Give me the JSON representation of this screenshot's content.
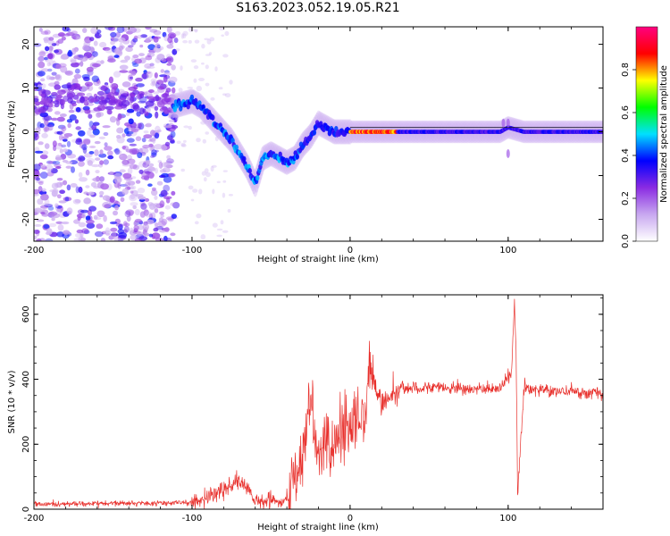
{
  "chart_data": [
    {
      "type": "heatmap",
      "title": "S163.2023.052.19.05.R21",
      "xlabel": "Height of straight line (km)",
      "ylabel": "Frequency (Hz)",
      "xlim": [
        -200,
        160
      ],
      "ylim": [
        -25,
        24
      ],
      "xticks": [
        -200,
        -100,
        0,
        100
      ],
      "yticks": [
        -20,
        -10,
        0,
        10,
        20
      ],
      "grid": false,
      "colorbar": {
        "label": "Normalized spectral amplitude",
        "range": [
          0,
          1
        ],
        "ticks": [
          0.0,
          0.2,
          0.4,
          0.6,
          0.8
        ],
        "colormap": [
          "#ffffff",
          "#c8a8f0",
          "#8a2be2",
          "#0000ff",
          "#00e0ff",
          "#00ff00",
          "#ffff00",
          "#ff0000",
          "#ff0080"
        ]
      },
      "ridge": {
        "x": [
          -110,
          -100,
          -95,
          -90,
          -85,
          -80,
          -75,
          -70,
          -65,
          -60,
          -55,
          -50,
          -45,
          -40,
          -35,
          -30,
          -25,
          -20,
          -15,
          -10,
          -5,
          0,
          10,
          20,
          40,
          60,
          80,
          95,
          100,
          110,
          130,
          160
        ],
        "y": [
          6,
          7,
          6,
          4,
          2,
          0,
          -2,
          -5,
          -8,
          -12,
          -6,
          -5,
          -6,
          -7,
          -6,
          -3,
          -1,
          2,
          1,
          0,
          0,
          0,
          0,
          0,
          0,
          0,
          0,
          0,
          1,
          0,
          0,
          0
        ]
      }
    },
    {
      "type": "line",
      "xlabel": "Height of straight line (km)",
      "ylabel": "SNR (10 * v/v)",
      "xlim": [
        -200,
        160
      ],
      "ylim": [
        0,
        660
      ],
      "xticks": [
        -200,
        -100,
        0,
        100
      ],
      "yticks": [
        0,
        200,
        400,
        600
      ],
      "grid": false,
      "color": "#e8302c",
      "key_points": {
        "x": [
          -200,
          -100,
          -90,
          -80,
          -70,
          -60,
          -40,
          -38,
          -30,
          -25,
          -20,
          -10,
          0,
          10,
          12,
          20,
          30,
          40,
          60,
          80,
          95,
          102,
          104,
          105,
          106,
          110,
          130,
          160
        ],
        "y": [
          15,
          20,
          40,
          60,
          90,
          30,
          20,
          60,
          150,
          340,
          170,
          200,
          250,
          300,
          440,
          320,
          370,
          375,
          375,
          370,
          370,
          420,
          640,
          480,
          50,
          370,
          365,
          355
        ]
      }
    }
  ]
}
